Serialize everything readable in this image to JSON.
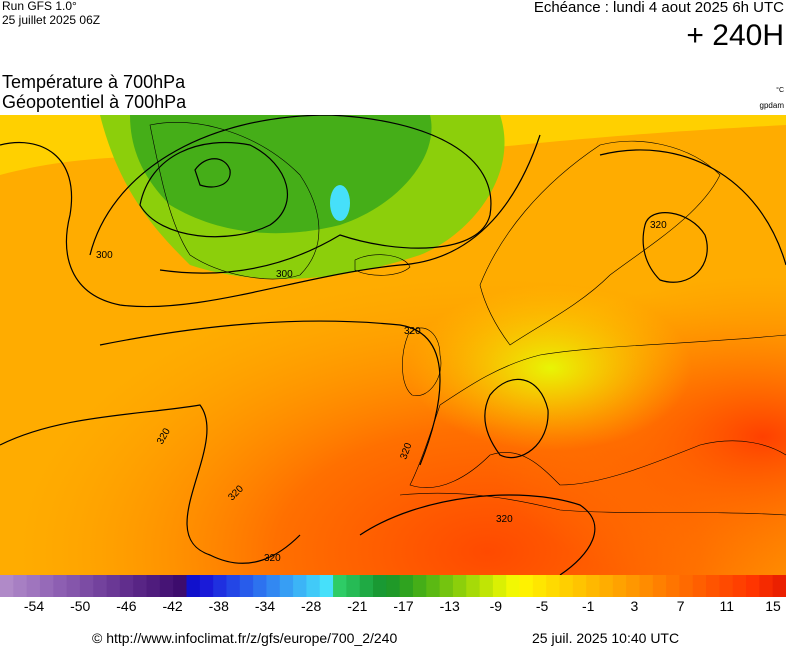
{
  "header": {
    "run": "Run GFS 1.0°",
    "run_date": "25 juillet 2025 06Z",
    "valid": "Echéance : lundi 4 aout 2025 6h UTC",
    "lead": "+ 240H"
  },
  "titles": {
    "line1": "Température à 700hPa",
    "line2": "Géopotentiel à 700hPa",
    "unit_temp": "°C",
    "unit_geo": "gpdam"
  },
  "contour_labels": [
    "300",
    "300",
    "320",
    "320",
    "320",
    "320",
    "320",
    "320",
    "320"
  ],
  "legend": {
    "ticks": [
      "-54",
      "-50",
      "-46",
      "-42",
      "-38",
      "-34",
      "-28",
      "-21",
      "-17",
      "-13",
      "-9",
      "-5",
      "-1",
      "3",
      "7",
      "11",
      "15"
    ],
    "colors": [
      "#b08ac8",
      "#a77fc3",
      "#9f75be",
      "#966ab8",
      "#8d5fb2",
      "#8556ab",
      "#7c4ca4",
      "#73429d",
      "#6a3895",
      "#612e8d",
      "#582585",
      "#4f1c7d",
      "#461475",
      "#3d0c6d",
      "#1010cc",
      "#1a1ad8",
      "#1f30e0",
      "#2346e6",
      "#285ceb",
      "#2d72ef",
      "#3288f2",
      "#379ef4",
      "#3cb4f6",
      "#41caf8",
      "#46e0fa",
      "#2ecc66",
      "#26bb55",
      "#1faa44",
      "#199933",
      "#1f9928",
      "#2fa31f",
      "#45ae18",
      "#5bb913",
      "#74c40f",
      "#8ccf0b",
      "#a6da08",
      "#c0e505",
      "#daf003",
      "#f2f802",
      "#fff200",
      "#ffe600",
      "#ffda00",
      "#ffcf00",
      "#ffc400",
      "#ffb800",
      "#ffad00",
      "#ffa200",
      "#ff9700",
      "#ff8c00",
      "#ff8000",
      "#ff7500",
      "#ff6a00",
      "#ff5f00",
      "#ff5400",
      "#ff4a00",
      "#ff4000",
      "#ff3500",
      "#f52a00",
      "#eb2000"
    ]
  },
  "footer": {
    "credit": "© http://www.infoclimat.fr/z/gfs/europe/700_2/240",
    "generated": "25 juil. 2025 10:40 UTC"
  }
}
